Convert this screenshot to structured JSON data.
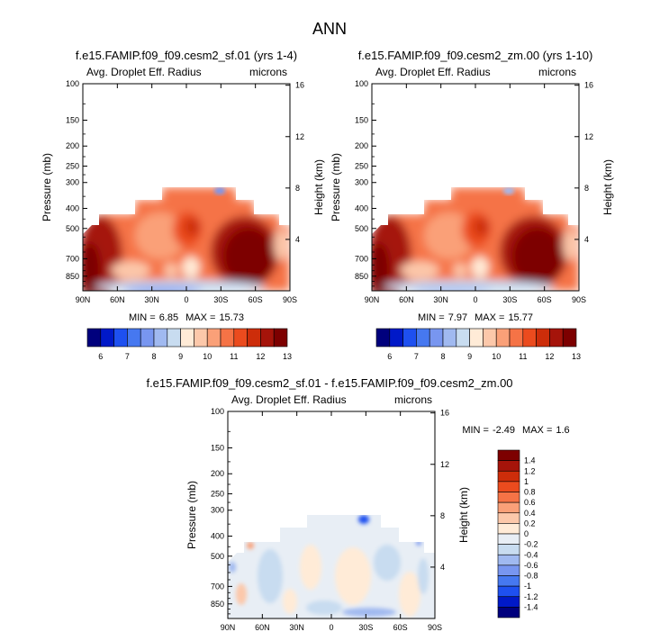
{
  "figure": {
    "title": "ANN",
    "units": "microns",
    "variable": "Avg. Droplet Eff. Radius",
    "pressure_label": "Pressure (mb)",
    "height_label": "Height (km)",
    "min_label": "MIN =",
    "max_label": "MAX ="
  },
  "chart_data": [
    {
      "type": "heatmap",
      "title": "f.e15.FAMIP.f09_f09.cesm2_sf.01 (yrs 1-4)",
      "subtitle_left": "Avg. Droplet Eff. Radius",
      "subtitle_right": "microns",
      "xlabel": "",
      "ylabel": "Pressure (mb)",
      "ylabel_right": "Height (km)",
      "x_ticks": [
        "90N",
        "60N",
        "30N",
        "0",
        "30S",
        "60S",
        "90S"
      ],
      "y_ticks": [
        100,
        150,
        200,
        250,
        300,
        400,
        500,
        700,
        850
      ],
      "y_right_ticks": [
        16,
        12,
        8,
        4
      ],
      "min": 6.85,
      "max": 15.73,
      "colorbar_levels": [
        6,
        7,
        8,
        9,
        10,
        11,
        12,
        13
      ],
      "colorbar_orientation": "horizontal"
    },
    {
      "type": "heatmap",
      "title": "f.e15.FAMIP.f09_f09.cesm2_zm.00 (yrs 1-10)",
      "subtitle_left": "Avg. Droplet Eff. Radius",
      "subtitle_right": "microns",
      "xlabel": "",
      "ylabel": "Pressure (mb)",
      "ylabel_right": "Height (km)",
      "x_ticks": [
        "90N",
        "60N",
        "30N",
        "0",
        "30S",
        "60S",
        "90S"
      ],
      "y_ticks": [
        100,
        150,
        200,
        250,
        300,
        400,
        500,
        700,
        850
      ],
      "y_right_ticks": [
        16,
        12,
        8,
        4
      ],
      "min": 7.97,
      "max": 15.77,
      "colorbar_levels": [
        6,
        7,
        8,
        9,
        10,
        11,
        12,
        13
      ],
      "colorbar_orientation": "horizontal"
    },
    {
      "type": "heatmap",
      "title": "f.e15.FAMIP.f09_f09.cesm2_sf.01 - f.e15.FAMIP.f09_f09.cesm2_zm.00",
      "subtitle_left": "Avg. Droplet Eff. Radius",
      "subtitle_right": "microns",
      "xlabel": "",
      "ylabel": "Pressure (mb)",
      "ylabel_right": "Height (km)",
      "x_ticks": [
        "90N",
        "60N",
        "30N",
        "0",
        "30S",
        "60S",
        "90S"
      ],
      "y_ticks": [
        100,
        150,
        200,
        250,
        300,
        400,
        500,
        700,
        850
      ],
      "y_right_ticks": [
        16,
        12,
        8,
        4
      ],
      "min": -2.49,
      "max": 1.6,
      "colorbar_levels": [
        1.4,
        1.2,
        1,
        0.8,
        0.6,
        0.4,
        0.2,
        0,
        -0.2,
        -0.4,
        -0.6,
        -0.8,
        -1,
        -1.2,
        -1.4
      ],
      "colorbar_orientation": "vertical"
    }
  ],
  "colors": {
    "abs_fill": [
      "#00007d",
      "#0019c8",
      "#1e50f0",
      "#4678f0",
      "#7896f0",
      "#a0b9f0",
      "#c8dcf0",
      "#ffebd7",
      "#fcc8aa",
      "#faa078",
      "#f57346",
      "#eb4b1e",
      "#cd2d0a",
      "#a5140a",
      "#7d0000"
    ],
    "diff_fill": [
      "#00007d",
      "#0019c8",
      "#1e50f0",
      "#4678f0",
      "#7896f0",
      "#a0b9f0",
      "#c8dcf0",
      "#e8eef5",
      "#ffebd7",
      "#fcc8aa",
      "#faa078",
      "#f57346",
      "#eb4b1e",
      "#cd2d0a",
      "#a5140a",
      "#7d0000"
    ]
  }
}
